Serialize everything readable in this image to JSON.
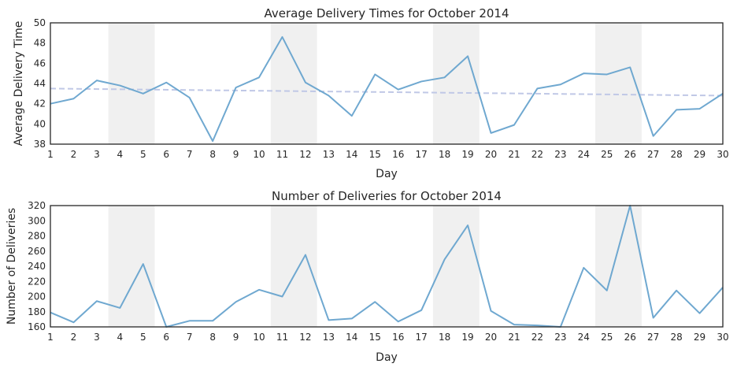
{
  "chart_data": [
    {
      "type": "line",
      "title": "Average Delivery Times for October 2014",
      "xlabel": "Day",
      "ylabel": "Average Delivery Time",
      "x": [
        1,
        2,
        3,
        4,
        5,
        6,
        7,
        8,
        9,
        10,
        11,
        12,
        13,
        14,
        15,
        16,
        17,
        18,
        19,
        20,
        21,
        22,
        23,
        24,
        25,
        26,
        27,
        28,
        29,
        30
      ],
      "series": [
        {
          "values": [
            42.0,
            42.5,
            44.3,
            43.8,
            43.0,
            44.1,
            42.6,
            38.3,
            43.6,
            44.6,
            48.6,
            44.1,
            42.8,
            40.8,
            44.9,
            43.4,
            44.2,
            44.6,
            46.7,
            39.1,
            39.9,
            43.5,
            43.9,
            45.0,
            44.9,
            45.6,
            38.8,
            41.4,
            41.5,
            43.0
          ],
          "color": "#6fa8d0"
        }
      ],
      "trend": {
        "start": 43.5,
        "end": 42.8,
        "color": "#c0c8e6",
        "style": "dashed"
      },
      "weekend_bands": [
        [
          3.5,
          5.5
        ],
        [
          10.5,
          12.5
        ],
        [
          17.5,
          19.5
        ],
        [
          24.5,
          26.5
        ]
      ],
      "band_color": "#f0f0f0",
      "xlim": [
        1,
        30
      ],
      "ylim": [
        38,
        50
      ],
      "yticks": [
        38,
        40,
        42,
        44,
        46,
        48,
        50
      ],
      "xticks": [
        1,
        2,
        3,
        4,
        5,
        6,
        7,
        8,
        9,
        10,
        11,
        12,
        13,
        14,
        15,
        16,
        17,
        18,
        19,
        20,
        21,
        22,
        23,
        24,
        25,
        26,
        27,
        28,
        29,
        30
      ],
      "grid": false,
      "legend": "none"
    },
    {
      "type": "line",
      "title": "Number of Deliveries for October 2014",
      "xlabel": "Day",
      "ylabel": "Number of Deliveries",
      "x": [
        1,
        2,
        3,
        4,
        5,
        6,
        7,
        8,
        9,
        10,
        11,
        12,
        13,
        14,
        15,
        16,
        17,
        18,
        19,
        20,
        21,
        22,
        23,
        24,
        25,
        26,
        27,
        28,
        29,
        30
      ],
      "series": [
        {
          "values": [
            179,
            166,
            194,
            185,
            243,
            160,
            168,
            168,
            193,
            209,
            200,
            255,
            169,
            171,
            193,
            167,
            182,
            249,
            294,
            181,
            163,
            162,
            160,
            238,
            208,
            320,
            172,
            208,
            178,
            212
          ],
          "color": "#6fa8d0"
        }
      ],
      "weekend_bands": [
        [
          3.5,
          5.5
        ],
        [
          10.5,
          12.5
        ],
        [
          17.5,
          19.5
        ],
        [
          24.5,
          26.5
        ]
      ],
      "band_color": "#f0f0f0",
      "xlim": [
        1,
        30
      ],
      "ylim": [
        160,
        320
      ],
      "yticks": [
        160,
        180,
        200,
        220,
        240,
        260,
        280,
        300,
        320
      ],
      "xticks": [
        1,
        2,
        3,
        4,
        5,
        6,
        7,
        8,
        9,
        10,
        11,
        12,
        13,
        14,
        15,
        16,
        17,
        18,
        19,
        20,
        21,
        22,
        23,
        24,
        25,
        26,
        27,
        28,
        29,
        30
      ],
      "grid": false,
      "legend": "none"
    }
  ]
}
